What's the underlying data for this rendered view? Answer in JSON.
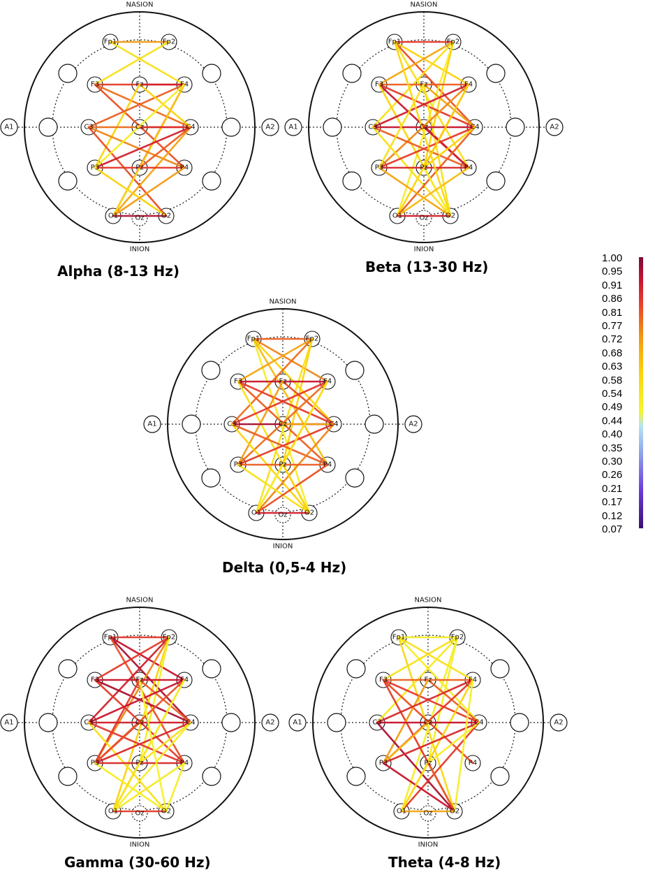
{
  "labels": {
    "top": "NASION",
    "bottom": "INION",
    "left": "A1",
    "right": "A2"
  },
  "electrodes": [
    {
      "id": "Fp1",
      "label": "Fp1"
    },
    {
      "id": "Fp2",
      "label": "Fp2"
    },
    {
      "id": "F3",
      "label": "F3"
    },
    {
      "id": "Fz",
      "label": "Fz"
    },
    {
      "id": "F4",
      "label": "F4"
    },
    {
      "id": "C3",
      "label": "C3"
    },
    {
      "id": "Cz",
      "label": "Cz"
    },
    {
      "id": "C4",
      "label": "C4"
    },
    {
      "id": "P3",
      "label": "P3"
    },
    {
      "id": "Pz",
      "label": "Pz"
    },
    {
      "id": "P4",
      "label": "P4"
    },
    {
      "id": "O1",
      "label": "O1"
    },
    {
      "id": "Oz",
      "label": "Oz"
    },
    {
      "id": "O2",
      "label": "O2"
    }
  ],
  "panels": [
    {
      "id": "alpha",
      "caption": "Alpha (8-13 Hz)",
      "connections": [
        [
          "Fp1",
          "Fp2",
          0.72
        ],
        [
          "Fp1",
          "F4",
          0.55
        ],
        [
          "Fp2",
          "F3",
          0.55
        ],
        [
          "F3",
          "F4",
          0.85
        ],
        [
          "F3",
          "C4",
          0.78
        ],
        [
          "F3",
          "P4",
          0.82
        ],
        [
          "Fz",
          "F4",
          0.9
        ],
        [
          "Fz",
          "P3",
          0.6
        ],
        [
          "F4",
          "C3",
          0.8
        ],
        [
          "F4",
          "O1",
          0.85
        ],
        [
          "F4",
          "Pz",
          0.62
        ],
        [
          "C3",
          "C4",
          0.78
        ],
        [
          "C3",
          "P4",
          0.75
        ],
        [
          "C3",
          "O2",
          0.82
        ],
        [
          "Cz",
          "C4",
          0.88
        ],
        [
          "C4",
          "P3",
          0.9
        ],
        [
          "C4",
          "O1",
          0.7
        ],
        [
          "P3",
          "P4",
          0.85
        ],
        [
          "P3",
          "O2",
          0.6
        ],
        [
          "Pz",
          "O1",
          0.55
        ],
        [
          "P4",
          "O1",
          0.72
        ],
        [
          "O1",
          "O2",
          0.95
        ],
        [
          "Fz",
          "C4",
          0.6
        ],
        [
          "F4",
          "P3",
          0.5
        ],
        [
          "C4",
          "Pz",
          0.8
        ]
      ]
    },
    {
      "id": "beta",
      "caption": "Beta (13-30 Hz)",
      "connections": [
        [
          "Fp1",
          "Fp2",
          0.85
        ],
        [
          "Fp1",
          "F4",
          0.6
        ],
        [
          "Fp1",
          "C4",
          0.82
        ],
        [
          "Fp1",
          "P4",
          0.55
        ],
        [
          "Fp2",
          "F3",
          0.7
        ],
        [
          "Fp2",
          "C3",
          0.55
        ],
        [
          "Fp2",
          "O1",
          0.5
        ],
        [
          "Fp2",
          "Pz",
          0.6
        ],
        [
          "F3",
          "F4",
          0.8
        ],
        [
          "F3",
          "C4",
          0.85
        ],
        [
          "F3",
          "P4",
          0.92
        ],
        [
          "F3",
          "O2",
          0.6
        ],
        [
          "Fz",
          "C4",
          0.7
        ],
        [
          "Fz",
          "O2",
          0.55
        ],
        [
          "F4",
          "C3",
          0.9
        ],
        [
          "F4",
          "P3",
          0.75
        ],
        [
          "F4",
          "O1",
          0.6
        ],
        [
          "C3",
          "C4",
          0.92
        ],
        [
          "C3",
          "P4",
          0.8
        ],
        [
          "C3",
          "O2",
          0.55
        ],
        [
          "Cz",
          "P4",
          0.9
        ],
        [
          "C4",
          "P3",
          0.85
        ],
        [
          "C4",
          "O1",
          0.8
        ],
        [
          "C4",
          "Pz",
          0.6
        ],
        [
          "P3",
          "P4",
          0.88
        ],
        [
          "P3",
          "O2",
          0.7
        ],
        [
          "Pz",
          "O2",
          0.5
        ],
        [
          "P4",
          "O1",
          0.65
        ],
        [
          "O1",
          "O2",
          0.9
        ],
        [
          "Fz",
          "P3",
          0.55
        ],
        [
          "F4",
          "Pz",
          0.62
        ],
        [
          "Fp1",
          "O2",
          0.58
        ]
      ]
    },
    {
      "id": "delta",
      "caption": "Delta (0,5-4 Hz)",
      "connections": [
        [
          "Fp1",
          "Fp2",
          0.8
        ],
        [
          "Fp1",
          "F4",
          0.75
        ],
        [
          "Fp1",
          "C4",
          0.6
        ],
        [
          "Fp1",
          "O2",
          0.5
        ],
        [
          "Fp1",
          "P4",
          0.65
        ],
        [
          "Fp2",
          "F3",
          0.7
        ],
        [
          "Fp2",
          "C3",
          0.78
        ],
        [
          "Fp2",
          "O1",
          0.55
        ],
        [
          "Fp2",
          "Pz",
          0.6
        ],
        [
          "F3",
          "F4",
          0.92
        ],
        [
          "F3",
          "C4",
          0.85
        ],
        [
          "F3",
          "P4",
          0.8
        ],
        [
          "F3",
          "O2",
          0.55
        ],
        [
          "Fz",
          "C4",
          0.82
        ],
        [
          "Fz",
          "P3",
          0.72
        ],
        [
          "F4",
          "C3",
          0.85
        ],
        [
          "F4",
          "P3",
          0.78
        ],
        [
          "F4",
          "O1",
          0.62
        ],
        [
          "C3",
          "C4",
          0.95
        ],
        [
          "C3",
          "P4",
          0.8
        ],
        [
          "C3",
          "O2",
          0.6
        ],
        [
          "Cz",
          "C4",
          0.7
        ],
        [
          "C4",
          "P3",
          0.85
        ],
        [
          "C4",
          "O1",
          0.75
        ],
        [
          "P3",
          "P4",
          0.8
        ],
        [
          "P3",
          "O2",
          0.55
        ],
        [
          "Pz",
          "O1",
          0.5
        ],
        [
          "P4",
          "O1",
          0.82
        ],
        [
          "O1",
          "O2",
          0.9
        ],
        [
          "Pz",
          "O2",
          0.6
        ],
        [
          "F4",
          "Pz",
          0.55
        ]
      ]
    },
    {
      "id": "gamma",
      "caption": "Gamma (30-60 Hz)",
      "connections": [
        [
          "Fp1",
          "Fp2",
          0.85
        ],
        [
          "Fp1",
          "F4",
          0.92
        ],
        [
          "Fp1",
          "C4",
          0.95
        ],
        [
          "Fp1",
          "P4",
          0.82
        ],
        [
          "Fp2",
          "F3",
          0.85
        ],
        [
          "Fp2",
          "C3",
          0.9
        ],
        [
          "Fp2",
          "P3",
          0.75
        ],
        [
          "Fp2",
          "O1",
          0.6
        ],
        [
          "Fp2",
          "Pz",
          0.5
        ],
        [
          "F3",
          "F4",
          0.92
        ],
        [
          "F3",
          "C4",
          0.95
        ],
        [
          "F3",
          "P4",
          0.85
        ],
        [
          "Fz",
          "C4",
          0.8
        ],
        [
          "Fz",
          "P3",
          0.85
        ],
        [
          "F4",
          "C3",
          0.92
        ],
        [
          "F4",
          "P3",
          0.82
        ],
        [
          "F4",
          "O1",
          0.6
        ],
        [
          "F4",
          "Pz",
          0.5
        ],
        [
          "C3",
          "C4",
          0.9
        ],
        [
          "C3",
          "P4",
          0.85
        ],
        [
          "C3",
          "O2",
          0.55
        ],
        [
          "Cz",
          "P3",
          0.82
        ],
        [
          "C4",
          "P3",
          0.88
        ],
        [
          "C4",
          "O1",
          0.5
        ],
        [
          "C4",
          "Pz",
          0.55
        ],
        [
          "P3",
          "P4",
          0.88
        ],
        [
          "P3",
          "O2",
          0.5
        ],
        [
          "Pz",
          "O1",
          0.55
        ],
        [
          "P4",
          "O1",
          0.52
        ],
        [
          "O1",
          "O2",
          0.85
        ],
        [
          "P4",
          "O2",
          0.5
        ],
        [
          "Fz",
          "O2",
          0.48
        ]
      ]
    },
    {
      "id": "theta",
      "caption": "Theta (4-8 Hz)",
      "connections": [
        [
          "Fp1",
          "Fp2",
          0.5
        ],
        [
          "Fp1",
          "F4",
          0.55
        ],
        [
          "Fp1",
          "C4",
          0.5
        ],
        [
          "Fp1",
          "O2",
          0.58
        ],
        [
          "Fp2",
          "F3",
          0.55
        ],
        [
          "Fp2",
          "C3",
          0.52
        ],
        [
          "Fp2",
          "O1",
          0.5
        ],
        [
          "Fp2",
          "Pz",
          0.5
        ],
        [
          "F3",
          "F4",
          0.8
        ],
        [
          "F3",
          "C4",
          0.85
        ],
        [
          "F3",
          "P4",
          0.82
        ],
        [
          "F3",
          "O2",
          0.85
        ],
        [
          "Fz",
          "C4",
          0.8
        ],
        [
          "Fz",
          "P3",
          0.72
        ],
        [
          "F4",
          "C3",
          0.88
        ],
        [
          "F4",
          "P3",
          0.85
        ],
        [
          "F4",
          "O1",
          0.6
        ],
        [
          "C3",
          "C4",
          0.92
        ],
        [
          "C3",
          "O2",
          0.95
        ],
        [
          "Cz",
          "P3",
          0.65
        ],
        [
          "C4",
          "P3",
          0.88
        ],
        [
          "C4",
          "O1",
          0.85
        ],
        [
          "C4",
          "Pz",
          0.5
        ],
        [
          "P3",
          "O2",
          0.92
        ],
        [
          "Pz",
          "O1",
          0.55
        ],
        [
          "O1",
          "O2",
          0.7
        ],
        [
          "Pz",
          "O2",
          0.8
        ],
        [
          "F4",
          "O2",
          0.5
        ]
      ]
    }
  ],
  "colorbar": {
    "ticks": [
      "1.00",
      "0.95",
      "0.91",
      "0.86",
      "0.81",
      "0.77",
      "0.72",
      "0.68",
      "0.63",
      "0.58",
      "0.54",
      "0.49",
      "0.44",
      "0.40",
      "0.35",
      "0.30",
      "0.26",
      "0.21",
      "0.17",
      "0.12",
      "0.07"
    ],
    "stops": [
      {
        "v": 0.07,
        "color": "#3a1070"
      },
      {
        "v": 0.2,
        "color": "#6a3cd8"
      },
      {
        "v": 0.33,
        "color": "#8fa6ea"
      },
      {
        "v": 0.42,
        "color": "#b5e3f2"
      },
      {
        "v": 0.47,
        "color": "#f4f62e"
      },
      {
        "v": 0.6,
        "color": "#fcd30a"
      },
      {
        "v": 0.72,
        "color": "#f39c12"
      },
      {
        "v": 0.84,
        "color": "#e8402a"
      },
      {
        "v": 0.92,
        "color": "#c9162e"
      },
      {
        "v": 1.0,
        "color": "#7a0a3a"
      }
    ]
  }
}
